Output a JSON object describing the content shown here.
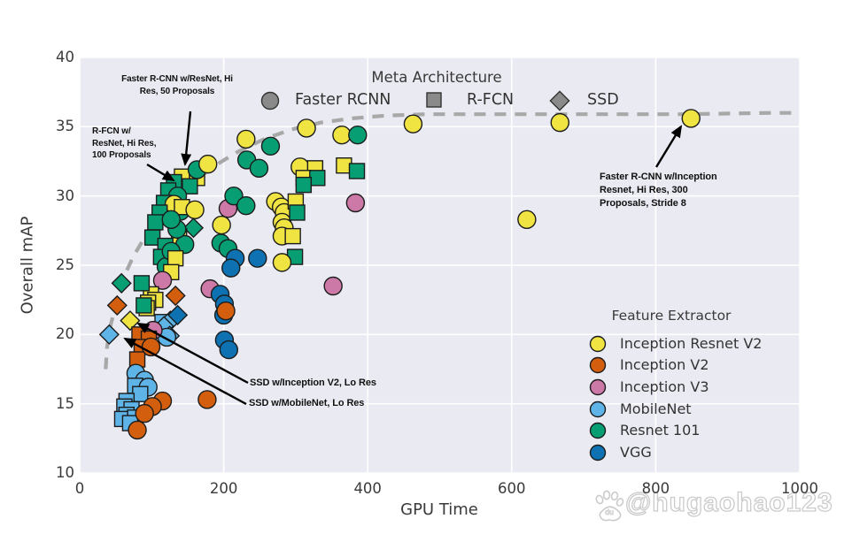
{
  "axes": {
    "x_label": "GPU Time",
    "y_label": "Overall mAP",
    "x_ticks": [
      0,
      200,
      400,
      600,
      800,
      1000
    ],
    "y_ticks": [
      10,
      15,
      20,
      25,
      30,
      35,
      40
    ]
  },
  "meta_legend": {
    "title": "Meta Architecture",
    "marker_color": "#8a8a8a",
    "items": [
      {
        "label": "Faster RCNN",
        "shape": "circle"
      },
      {
        "label": "R-FCN",
        "shape": "square"
      },
      {
        "label": "SSD",
        "shape": "diamond"
      }
    ]
  },
  "feature_legend": {
    "title": "Feature Extractor",
    "items": [
      {
        "key": "irv2",
        "label": "Inception Resnet V2",
        "color": "#F0E442"
      },
      {
        "key": "iv2",
        "label": "Inception V2",
        "color": "#D35F0E"
      },
      {
        "key": "iv3",
        "label": "Inception V3",
        "color": "#CC79A7"
      },
      {
        "key": "mn",
        "label": "MobileNet",
        "color": "#5EB4E6"
      },
      {
        "key": "r101",
        "label": "Resnet 101",
        "color": "#089E73"
      },
      {
        "key": "vgg",
        "label": "VGG",
        "color": "#0E72B2"
      }
    ]
  },
  "annotations": [
    {
      "id": "frcnn-resnet-hires-50prop",
      "lines": [
        "Faster R-CNN w/ResNet, Hi",
        "Res, 50 Proposals"
      ]
    },
    {
      "id": "rfcn-resnet-hires-100prop",
      "lines": [
        "R-FCN w/",
        "ResNet, Hi Res,",
        "100 Proposals"
      ]
    },
    {
      "id": "ssd-inceptionv2-lores",
      "lines": [
        "SSD w/Inception V2, Lo Res"
      ]
    },
    {
      "id": "ssd-mobilenet-lores",
      "lines": [
        "SSD w/MobileNet, Lo Res"
      ]
    },
    {
      "id": "frcnn-inception-resnet-300prop",
      "lines": [
        "Faster R-CNN w/Inception",
        "Resnet, Hi Res, 300",
        "Proposals, Stride 8"
      ]
    }
  ],
  "watermark": {
    "handle": "@hugaohao123",
    "icon": "baidu-paw"
  },
  "style": {
    "plot_bg": "#eaeaf2",
    "grid": "#ffffff",
    "frontier": "#a8a8a8",
    "marker_outline": "#1c1c1c",
    "text": "#3a3a3a"
  },
  "chart_data": {
    "type": "scatter",
    "title": "",
    "xlabel": "GPU Time",
    "ylabel": "Overall mAP",
    "xlim": [
      0,
      1003
    ],
    "ylim": [
      10,
      40
    ],
    "grid": true,
    "shape_encoding": {
      "Faster RCNN": "circle",
      "R-FCN": "square",
      "SSD": "diamond"
    },
    "color_encoding": {
      "irv2": "Inception Resnet V2",
      "iv2": "Inception V2",
      "iv3": "Inception V3",
      "mn": "MobileNet",
      "r101": "Resnet 101",
      "vgg": "VGG"
    },
    "frontier": [
      [
        36,
        17.5
      ],
      [
        38,
        19.1
      ],
      [
        43,
        20.7
      ],
      [
        51,
        22.3
      ],
      [
        60,
        24.0
      ],
      [
        74,
        25.6
      ],
      [
        90,
        27.0
      ],
      [
        110,
        28.4
      ],
      [
        132,
        29.7
      ],
      [
        158,
        31.0
      ],
      [
        188,
        32.2
      ],
      [
        220,
        33.2
      ],
      [
        256,
        34.1
      ],
      [
        294,
        34.8
      ],
      [
        335,
        35.3
      ],
      [
        378,
        35.6
      ],
      [
        425,
        35.8
      ],
      [
        480,
        35.9
      ],
      [
        600,
        35.9
      ],
      [
        720,
        35.9
      ],
      [
        840,
        35.9
      ],
      [
        960,
        36.0
      ],
      [
        1000,
        36.0
      ]
    ],
    "points": [
      [
        142,
        31.4,
        "s",
        "irv2"
      ],
      [
        163,
        31.3,
        "s",
        "irv2"
      ],
      [
        153,
        30.7,
        "s",
        "r101"
      ],
      [
        131,
        31.0,
        "s",
        "r101"
      ],
      [
        163,
        31.9,
        "c",
        "r101"
      ],
      [
        178,
        32.3,
        "c",
        "irv2"
      ],
      [
        123,
        30.4,
        "s",
        "r101"
      ],
      [
        136,
        30.0,
        "c",
        "r101"
      ],
      [
        117,
        29.5,
        "s",
        "r101"
      ],
      [
        140,
        28.9,
        "c",
        "r101"
      ],
      [
        131,
        29.4,
        "c",
        "irv2"
      ],
      [
        142,
        29.2,
        "s",
        "irv2"
      ],
      [
        160,
        29.0,
        "c",
        "irv2"
      ],
      [
        206,
        29.1,
        "c",
        "iv3"
      ],
      [
        158,
        27.7,
        "d",
        "r101"
      ],
      [
        197,
        27.9,
        "c",
        "irv2"
      ],
      [
        138,
        27.1,
        "s",
        "irv2"
      ],
      [
        146,
        26.5,
        "c",
        "r101"
      ],
      [
        196,
        26.6,
        "c",
        "r101"
      ],
      [
        206,
        26.2,
        "c",
        "r101"
      ],
      [
        111,
        28.8,
        "s",
        "r101"
      ],
      [
        105,
        28.1,
        "s",
        "r101"
      ],
      [
        101,
        27.0,
        "s",
        "r101"
      ],
      [
        119,
        26.4,
        "s",
        "r101"
      ],
      [
        113,
        25.6,
        "s",
        "r101"
      ],
      [
        120,
        24.9,
        "c",
        "r101"
      ],
      [
        127,
        26.0,
        "c",
        "r101"
      ],
      [
        135,
        27.6,
        "c",
        "r101"
      ],
      [
        127,
        28.3,
        "c",
        "r101"
      ],
      [
        133,
        25.5,
        "s",
        "irv2"
      ],
      [
        127,
        24.5,
        "s",
        "irv2"
      ],
      [
        115,
        23.9,
        "c",
        "iv3"
      ],
      [
        133,
        22.8,
        "d",
        "iv2"
      ],
      [
        181,
        23.3,
        "c",
        "iv3"
      ],
      [
        99,
        22.9,
        "s",
        "irv2"
      ],
      [
        105,
        22.5,
        "s",
        "irv2"
      ],
      [
        95,
        22.3,
        "s",
        "irv2"
      ],
      [
        93,
        21.9,
        "s",
        "irv2"
      ],
      [
        86,
        23.7,
        "s",
        "r101"
      ],
      [
        89,
        22.1,
        "s",
        "r101"
      ],
      [
        70,
        21.0,
        "d",
        "irv2"
      ],
      [
        58,
        23.7,
        "d",
        "r101"
      ],
      [
        52,
        22.1,
        "d",
        "iv2"
      ],
      [
        41,
        20.0,
        "d",
        "mn"
      ],
      [
        115,
        20.9,
        "s",
        "mn"
      ],
      [
        126,
        21.0,
        "d",
        "mn"
      ],
      [
        117,
        20.6,
        "d",
        "mn"
      ],
      [
        125,
        19.9,
        "d",
        "mn"
      ],
      [
        121,
        19.8,
        "c",
        "mn"
      ],
      [
        102,
        20.3,
        "c",
        "iv3"
      ],
      [
        83,
        20.0,
        "s",
        "iv2"
      ],
      [
        96,
        19.7,
        "s",
        "iv2"
      ],
      [
        86,
        19.1,
        "s",
        "iv2"
      ],
      [
        80,
        18.2,
        "s",
        "iv2"
      ],
      [
        99,
        19.1,
        "c",
        "iv2"
      ],
      [
        136,
        21.4,
        "d",
        "vgg"
      ],
      [
        195,
        22.9,
        "c",
        "vgg"
      ],
      [
        201,
        22.2,
        "c",
        "vgg"
      ],
      [
        200,
        21.4,
        "c",
        "vgg"
      ],
      [
        203,
        21.7,
        "c",
        "iv2"
      ],
      [
        201,
        19.6,
        "c",
        "vgg"
      ],
      [
        207,
        18.9,
        "c",
        "vgg"
      ],
      [
        78,
        17.2,
        "c",
        "mn"
      ],
      [
        90,
        16.7,
        "c",
        "mn"
      ],
      [
        77,
        16.3,
        "s",
        "mn"
      ],
      [
        95,
        16.2,
        "c",
        "mn"
      ],
      [
        84,
        15.7,
        "s",
        "mn"
      ],
      [
        65,
        15.2,
        "s",
        "mn"
      ],
      [
        62,
        14.8,
        "s",
        "mn"
      ],
      [
        72,
        14.6,
        "s",
        "mn"
      ],
      [
        65,
        14.2,
        "s",
        "mn"
      ],
      [
        59,
        13.9,
        "s",
        "mn"
      ],
      [
        77,
        14.0,
        "s",
        "mn"
      ],
      [
        70,
        13.6,
        "s",
        "mn"
      ],
      [
        115,
        15.2,
        "c",
        "iv2"
      ],
      [
        101,
        14.8,
        "c",
        "iv2"
      ],
      [
        90,
        14.3,
        "c",
        "iv2"
      ],
      [
        80,
        13.1,
        "c",
        "iv2"
      ],
      [
        177,
        15.3,
        "c",
        "iv2"
      ],
      [
        231,
        34.1,
        "c",
        "irv2"
      ],
      [
        265,
        33.6,
        "c",
        "r101"
      ],
      [
        232,
        32.6,
        "c",
        "r101"
      ],
      [
        249,
        32.0,
        "c",
        "r101"
      ],
      [
        315,
        34.9,
        "c",
        "irv2"
      ],
      [
        364,
        34.4,
        "c",
        "irv2"
      ],
      [
        386,
        34.4,
        "c",
        "r101"
      ],
      [
        306,
        32.1,
        "c",
        "irv2"
      ],
      [
        327,
        32.0,
        "s",
        "irv2"
      ],
      [
        311,
        31.3,
        "s",
        "irv2"
      ],
      [
        330,
        31.3,
        "s",
        "r101"
      ],
      [
        311,
        30.8,
        "s",
        "r101"
      ],
      [
        367,
        32.2,
        "s",
        "irv2"
      ],
      [
        385,
        31.8,
        "s",
        "r101"
      ],
      [
        383,
        29.5,
        "c",
        "iv3"
      ],
      [
        214,
        30.0,
        "c",
        "r101"
      ],
      [
        231,
        29.3,
        "c",
        "r101"
      ],
      [
        272,
        29.6,
        "c",
        "irv2"
      ],
      [
        280,
        29.2,
        "c",
        "irv2"
      ],
      [
        284,
        28.8,
        "c",
        "irv2"
      ],
      [
        281,
        28.1,
        "c",
        "irv2"
      ],
      [
        284,
        27.7,
        "c",
        "irv2"
      ],
      [
        281,
        27.1,
        "c",
        "irv2"
      ],
      [
        300,
        29.6,
        "s",
        "irv2"
      ],
      [
        302,
        28.8,
        "s",
        "r101"
      ],
      [
        296,
        27.1,
        "s",
        "irv2"
      ],
      [
        216,
        25.5,
        "c",
        "vgg"
      ],
      [
        210,
        24.8,
        "c",
        "vgg"
      ],
      [
        247,
        25.5,
        "c",
        "vgg"
      ],
      [
        299,
        25.6,
        "s",
        "r101"
      ],
      [
        281,
        25.2,
        "c",
        "irv2"
      ],
      [
        352,
        23.5,
        "c",
        "iv3"
      ],
      [
        463,
        35.2,
        "c",
        "irv2"
      ],
      [
        667,
        35.3,
        "c",
        "irv2"
      ],
      [
        849,
        35.6,
        "c",
        "irv2"
      ],
      [
        621,
        28.3,
        "c",
        "irv2"
      ]
    ]
  }
}
